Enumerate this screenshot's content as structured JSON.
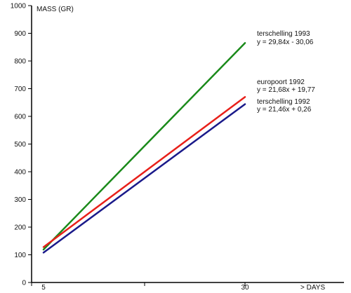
{
  "chart_data": {
    "type": "line",
    "ylabel": "MASS (GR)",
    "xlabel": "> DAYS",
    "ylim": [
      0,
      1000
    ],
    "xlim": [
      0,
      30
    ],
    "grid": false,
    "y_ticks": [
      "0",
      "100",
      "200",
      "300",
      "400",
      "500",
      "600",
      "700",
      "800",
      "900",
      "1000"
    ],
    "x_ticks": [
      "5",
      "30"
    ],
    "series": [
      {
        "name": "terschelling 1993",
        "equation": "y = 29,84x - 30,06",
        "color": "#1a8a1a",
        "x": [
          5,
          30
        ],
        "y": [
          119,
          865
        ]
      },
      {
        "name": "europoort 1992",
        "equation": "y = 21,68x + 19,77",
        "color": "#e8201a",
        "x": [
          5,
          30
        ],
        "y": [
          128,
          670
        ]
      },
      {
        "name": "terschelling 1992",
        "equation": "y = 21,46x + 0,26",
        "color": "#1a1a8a",
        "x": [
          5,
          30
        ],
        "y": [
          108,
          644
        ]
      }
    ]
  }
}
